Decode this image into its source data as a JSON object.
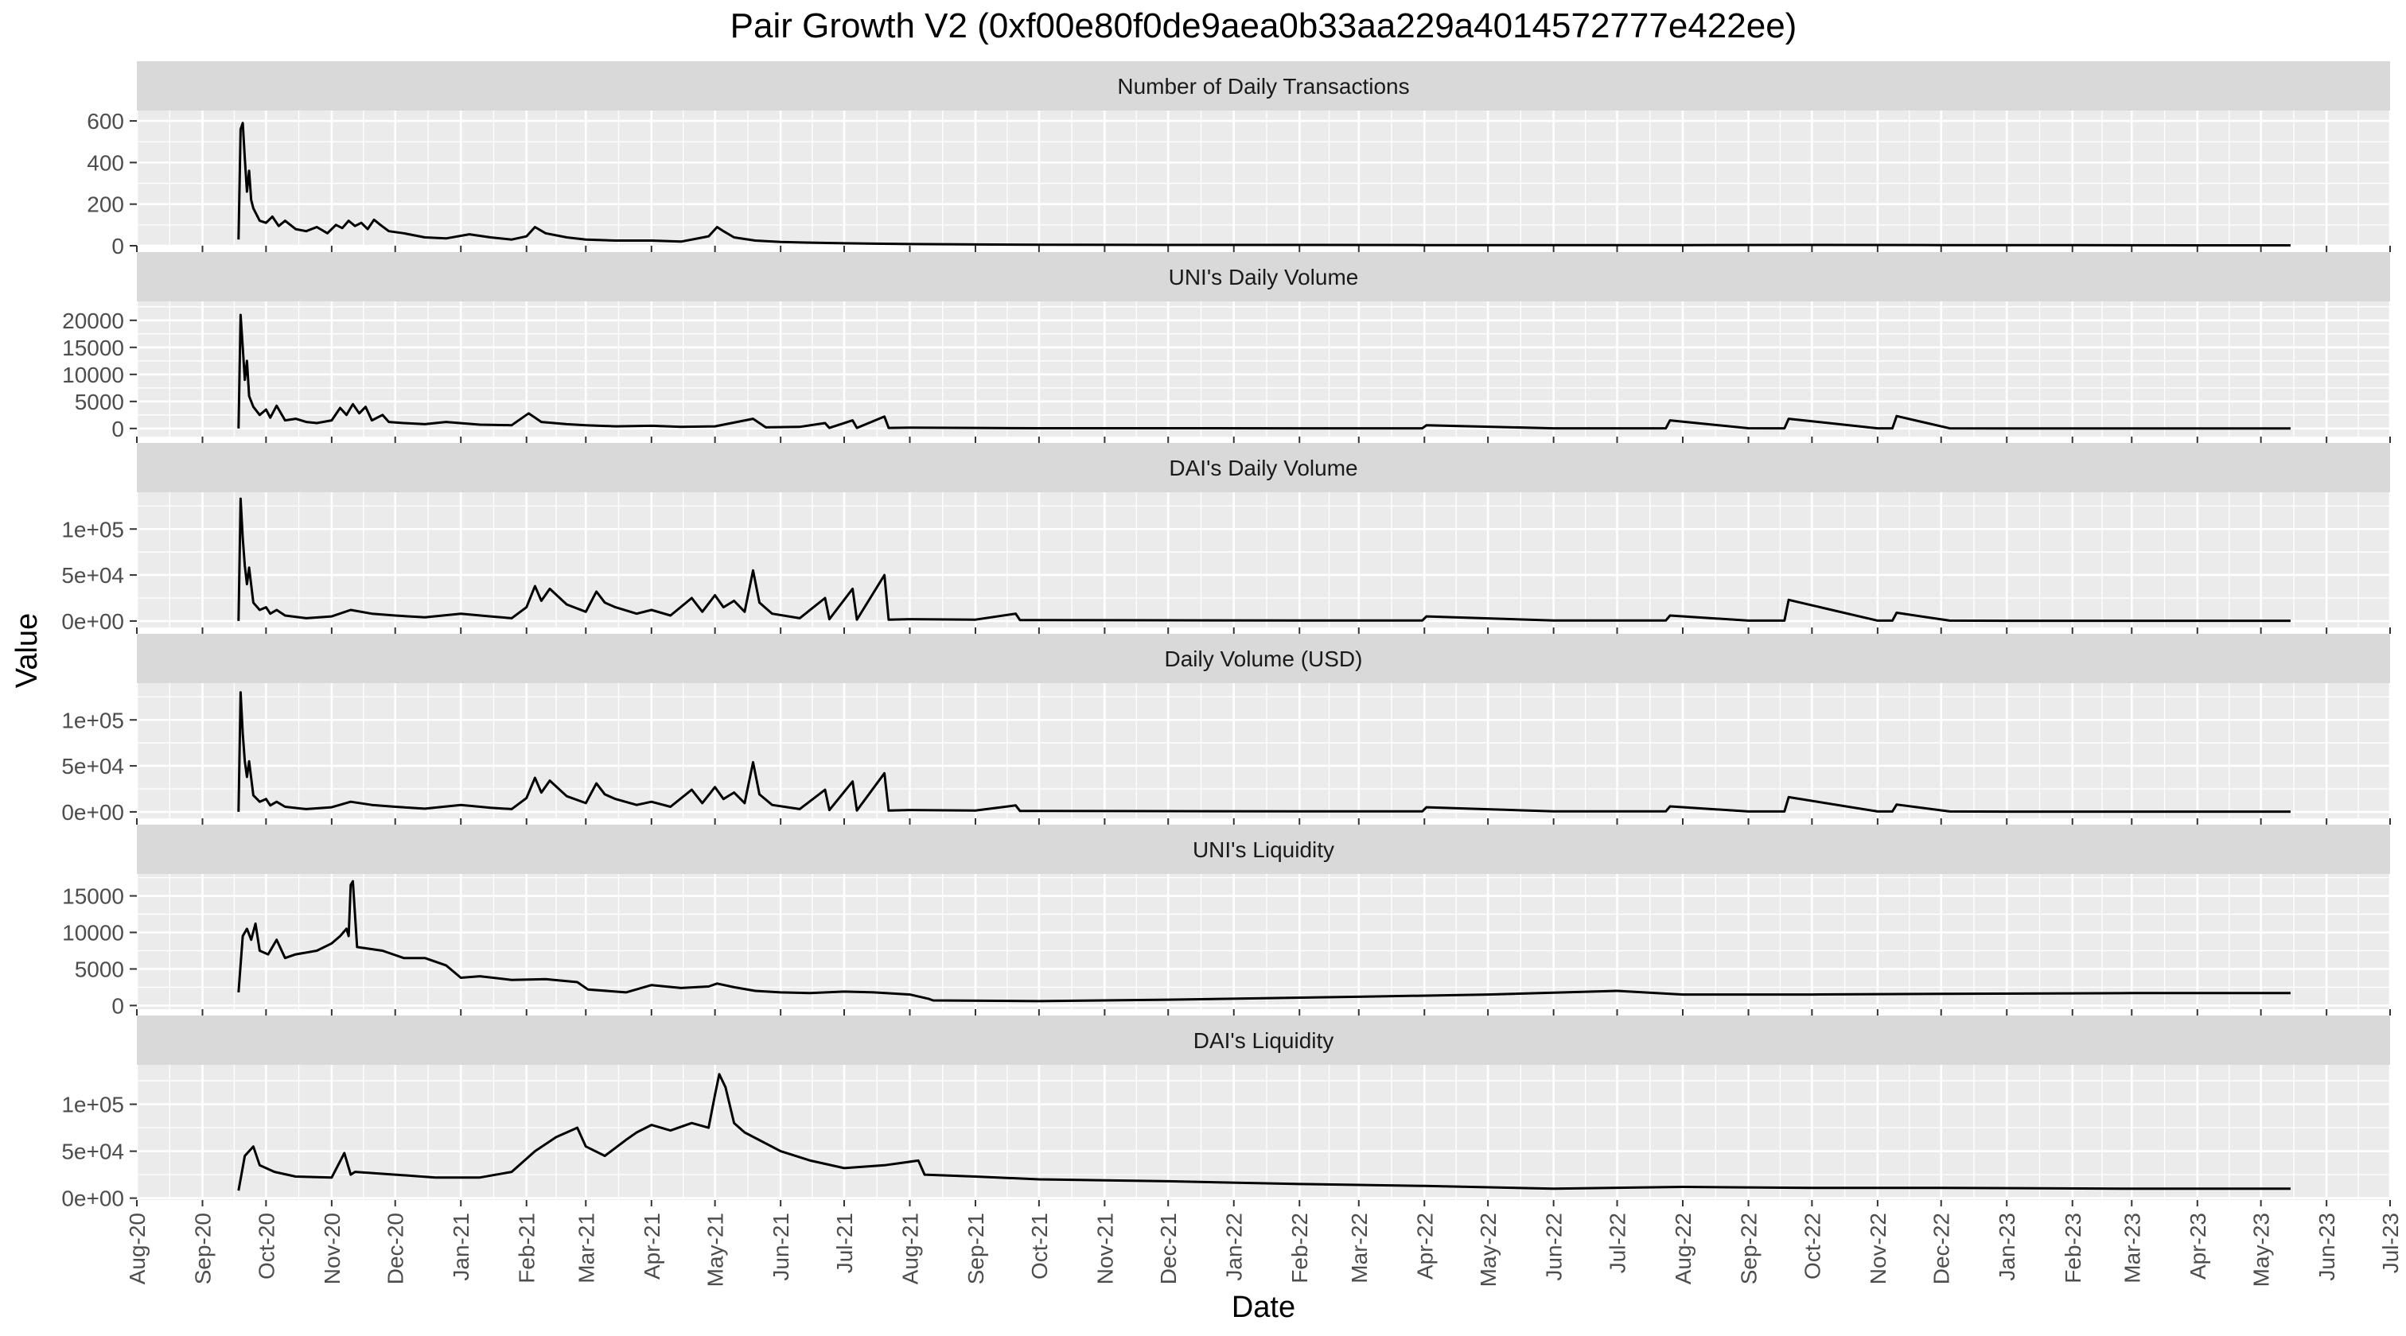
{
  "title": "Pair Growth V2 (0xf00e80f0de9aea0b33aa229a4014572777e422ee)",
  "colors": {
    "panel_background": "#ebebeb",
    "strip_background": "#d9d9d9",
    "grid_major": "#ffffff",
    "line": "#000000",
    "tick_text": "#4d4d4d"
  },
  "chart_data": {
    "type": "line",
    "facet_layout": "single column, 6 rows, shared date x-axis",
    "xlabel": "Date",
    "ylabel": "Value",
    "xlim": [
      "2020-08-01",
      "2023-07-01"
    ],
    "x_ticks": [
      "Aug-20",
      "Sep-20",
      "Oct-20",
      "Nov-20",
      "Dec-20",
      "Jan-21",
      "Feb-21",
      "Mar-21",
      "Apr-21",
      "May-21",
      "Jun-21",
      "Jul-21",
      "Aug-21",
      "Sep-21",
      "Oct-21",
      "Nov-21",
      "Dec-21",
      "Jan-22",
      "Feb-22",
      "Mar-22",
      "Apr-22",
      "May-22",
      "Jun-22",
      "Jul-22",
      "Aug-22",
      "Sep-22",
      "Oct-22",
      "Nov-22",
      "Dec-22",
      "Jan-23",
      "Feb-23",
      "Mar-23",
      "Apr-23",
      "May-23",
      "Jun-23",
      "Jul-23"
    ],
    "grid": true,
    "legend": "none",
    "panels": [
      {
        "name": "Number of Daily Transactions",
        "ylim": [
          0,
          650
        ],
        "y_ticks": [
          0,
          200,
          400,
          600
        ],
        "y_tick_labels": [
          "0",
          "200",
          "400",
          "600"
        ],
        "x": [
          "2020-09-18",
          "2020-09-19",
          "2020-09-20",
          "2020-09-21",
          "2020-09-22",
          "2020-09-23",
          "2020-09-24",
          "2020-09-25",
          "2020-09-28",
          "2020-10-01",
          "2020-10-04",
          "2020-10-07",
          "2020-10-10",
          "2020-10-15",
          "2020-10-20",
          "2020-10-25",
          "2020-10-30",
          "2020-11-03",
          "2020-11-06",
          "2020-11-09",
          "2020-11-12",
          "2020-11-15",
          "2020-11-18",
          "2020-11-21",
          "2020-11-24",
          "2020-11-28",
          "2020-12-05",
          "2020-12-15",
          "2020-12-25",
          "2021-01-05",
          "2021-01-15",
          "2021-01-25",
          "2021-02-01",
          "2021-02-05",
          "2021-02-10",
          "2021-02-20",
          "2021-03-01",
          "2021-03-15",
          "2021-04-01",
          "2021-04-15",
          "2021-04-28",
          "2021-05-02",
          "2021-05-05",
          "2021-05-10",
          "2021-05-20",
          "2021-06-01",
          "2021-06-15",
          "2021-07-01",
          "2021-07-15",
          "2021-08-01",
          "2021-09-01",
          "2021-10-01",
          "2021-12-01",
          "2022-02-01",
          "2022-04-01",
          "2022-06-01",
          "2022-08-01",
          "2022-10-01",
          "2022-12-01",
          "2023-02-01",
          "2023-04-01",
          "2023-05-15"
        ],
        "y": [
          30,
          560,
          590,
          420,
          260,
          360,
          220,
          180,
          120,
          110,
          140,
          95,
          120,
          80,
          70,
          90,
          60,
          100,
          85,
          120,
          95,
          110,
          80,
          125,
          100,
          70,
          60,
          40,
          35,
          55,
          40,
          30,
          45,
          90,
          60,
          40,
          30,
          25,
          25,
          20,
          45,
          90,
          70,
          40,
          25,
          18,
          15,
          12,
          10,
          8,
          6,
          5,
          4,
          4,
          3,
          3,
          3,
          4,
          3,
          3,
          2,
          2
        ]
      },
      {
        "name": "UNI's Daily Volume",
        "ylim": [
          -1500,
          23500
        ],
        "y_ticks": [
          0,
          5000,
          10000,
          15000,
          20000
        ],
        "y_tick_labels": [
          "0",
          "5000",
          "10000",
          "15000",
          "20000"
        ],
        "x": [
          "2020-09-18",
          "2020-09-19",
          "2020-09-20",
          "2020-09-21",
          "2020-09-22",
          "2020-09-23",
          "2020-09-25",
          "2020-09-28",
          "2020-10-01",
          "2020-10-03",
          "2020-10-06",
          "2020-10-10",
          "2020-10-15",
          "2020-10-20",
          "2020-10-25",
          "2020-11-01",
          "2020-11-05",
          "2020-11-08",
          "2020-11-11",
          "2020-11-14",
          "2020-11-17",
          "2020-11-20",
          "2020-11-25",
          "2020-11-28",
          "2020-12-05",
          "2020-12-15",
          "2020-12-25",
          "2021-01-10",
          "2021-01-25",
          "2021-02-02",
          "2021-02-08",
          "2021-02-20",
          "2021-03-01",
          "2021-03-15",
          "2021-04-01",
          "2021-04-15",
          "2021-05-01",
          "2021-05-19",
          "2021-05-25",
          "2021-06-10",
          "2021-06-22",
          "2021-06-24",
          "2021-07-05",
          "2021-07-07",
          "2021-07-20",
          "2021-07-22",
          "2021-08-01",
          "2021-09-01",
          "2021-10-01",
          "2021-12-01",
          "2022-02-01",
          "2022-03-31",
          "2022-04-02",
          "2022-06-01",
          "2022-07-24",
          "2022-07-26",
          "2022-09-01",
          "2022-09-18",
          "2022-09-20",
          "2022-11-01",
          "2022-11-08",
          "2022-11-10",
          "2022-12-05",
          "2023-01-01",
          "2023-03-01",
          "2023-05-15"
        ],
        "y": [
          0,
          21000,
          15000,
          9000,
          12500,
          6000,
          4000,
          2500,
          3500,
          2000,
          4200,
          1500,
          1800,
          1200,
          1000,
          1500,
          3800,
          2500,
          4500,
          2800,
          4000,
          1500,
          2500,
          1200,
          1000,
          800,
          1200,
          700,
          600,
          2800,
          1200,
          800,
          600,
          400,
          500,
          300,
          400,
          1800,
          200,
          300,
          1000,
          100,
          1500,
          100,
          2200,
          100,
          150,
          100,
          50,
          50,
          30,
          30,
          600,
          30,
          30,
          1500,
          50,
          30,
          1800,
          30,
          30,
          2300,
          30,
          20,
          20,
          20
        ]
      },
      {
        "name": "DAI's Daily Volume",
        "ylim": [
          -7000,
          140000
        ],
        "y_ticks": [
          0,
          50000,
          100000
        ],
        "y_tick_labels": [
          "0e+00",
          "5e+04",
          "1e+05"
        ],
        "x": [
          "2020-09-18",
          "2020-09-19",
          "2020-09-20",
          "2020-09-21",
          "2020-09-22",
          "2020-09-23",
          "2020-09-25",
          "2020-09-28",
          "2020-10-01",
          "2020-10-03",
          "2020-10-06",
          "2020-10-10",
          "2020-10-20",
          "2020-11-01",
          "2020-11-10",
          "2020-11-20",
          "2020-12-01",
          "2020-12-15",
          "2021-01-01",
          "2021-01-15",
          "2021-01-25",
          "2021-02-01",
          "2021-02-05",
          "2021-02-08",
          "2021-02-12",
          "2021-02-20",
          "2021-03-01",
          "2021-03-06",
          "2021-03-10",
          "2021-03-15",
          "2021-03-25",
          "2021-04-01",
          "2021-04-10",
          "2021-04-20",
          "2021-04-25",
          "2021-05-01",
          "2021-05-05",
          "2021-05-10",
          "2021-05-15",
          "2021-05-19",
          "2021-05-22",
          "2021-05-28",
          "2021-06-10",
          "2021-06-22",
          "2021-06-24",
          "2021-07-05",
          "2021-07-07",
          "2021-07-20",
          "2021-07-22",
          "2021-08-01",
          "2021-09-01",
          "2021-09-20",
          "2021-09-22",
          "2021-10-01",
          "2021-12-01",
          "2022-02-01",
          "2022-03-31",
          "2022-04-02",
          "2022-06-01",
          "2022-07-24",
          "2022-07-26",
          "2022-09-01",
          "2022-09-18",
          "2022-09-20",
          "2022-11-01",
          "2022-11-08",
          "2022-11-10",
          "2022-12-05",
          "2023-01-01",
          "2023-03-01",
          "2023-05-15"
        ],
        "y": [
          0,
          133000,
          90000,
          60000,
          40000,
          58000,
          20000,
          12000,
          15000,
          8000,
          12000,
          6000,
          3000,
          5000,
          12000,
          8000,
          6000,
          4000,
          8000,
          5000,
          3000,
          15000,
          38000,
          22000,
          35000,
          18000,
          10000,
          32000,
          20000,
          15000,
          8000,
          12000,
          6000,
          25000,
          10000,
          28000,
          15000,
          22000,
          10000,
          55000,
          20000,
          8000,
          3000,
          25000,
          2000,
          35000,
          1500,
          50000,
          1500,
          2000,
          1500,
          8000,
          1000,
          1000,
          800,
          600,
          500,
          5000,
          500,
          500,
          6000,
          400,
          400,
          23000,
          400,
          400,
          9000,
          400,
          300,
          300,
          300
        ]
      },
      {
        "name": "Daily Volume (USD)",
        "ylim": [
          -7000,
          140000
        ],
        "y_ticks": [
          0,
          50000,
          100000
        ],
        "y_tick_labels": [
          "0e+00",
          "5e+04",
          "1e+05"
        ],
        "x": [
          "2020-09-18",
          "2020-09-19",
          "2020-09-20",
          "2020-09-21",
          "2020-09-22",
          "2020-09-23",
          "2020-09-25",
          "2020-09-28",
          "2020-10-01",
          "2020-10-03",
          "2020-10-06",
          "2020-10-10",
          "2020-10-20",
          "2020-11-01",
          "2020-11-10",
          "2020-11-20",
          "2020-12-01",
          "2020-12-15",
          "2021-01-01",
          "2021-01-15",
          "2021-01-25",
          "2021-02-01",
          "2021-02-05",
          "2021-02-08",
          "2021-02-12",
          "2021-02-20",
          "2021-03-01",
          "2021-03-06",
          "2021-03-10",
          "2021-03-15",
          "2021-03-25",
          "2021-04-01",
          "2021-04-10",
          "2021-04-20",
          "2021-04-25",
          "2021-05-01",
          "2021-05-05",
          "2021-05-10",
          "2021-05-15",
          "2021-05-19",
          "2021-05-22",
          "2021-05-28",
          "2021-06-10",
          "2021-06-22",
          "2021-06-24",
          "2021-07-05",
          "2021-07-07",
          "2021-07-20",
          "2021-07-22",
          "2021-08-01",
          "2021-09-01",
          "2021-09-20",
          "2021-09-22",
          "2021-10-01",
          "2021-12-01",
          "2022-02-01",
          "2022-03-31",
          "2022-04-02",
          "2022-06-01",
          "2022-07-24",
          "2022-07-26",
          "2022-09-01",
          "2022-09-18",
          "2022-09-20",
          "2022-11-01",
          "2022-11-08",
          "2022-11-10",
          "2022-12-05",
          "2023-01-01",
          "2023-03-01",
          "2023-05-15"
        ],
        "y": [
          0,
          130000,
          85000,
          55000,
          38000,
          55000,
          18000,
          11000,
          14000,
          7000,
          11000,
          5500,
          3000,
          5000,
          11000,
          7500,
          5500,
          3500,
          7500,
          4500,
          3000,
          15000,
          37000,
          21000,
          34000,
          17000,
          9500,
          31000,
          19000,
          14000,
          7500,
          11000,
          5500,
          24000,
          9500,
          27000,
          14000,
          21000,
          9500,
          54000,
          19000,
          7500,
          3000,
          24000,
          2000,
          33000,
          1500,
          42000,
          1500,
          2000,
          1500,
          7000,
          1000,
          1000,
          800,
          600,
          500,
          5000,
          500,
          500,
          6000,
          400,
          400,
          16000,
          400,
          400,
          8000,
          400,
          300,
          300,
          300
        ]
      },
      {
        "name": "UNI's Liquidity",
        "ylim": [
          -500,
          18000
        ],
        "y_ticks": [
          0,
          5000,
          10000,
          15000
        ],
        "y_tick_labels": [
          "0",
          "5000",
          "10000",
          "15000"
        ],
        "x": [
          "2020-09-18",
          "2020-09-20",
          "2020-09-22",
          "2020-09-24",
          "2020-09-26",
          "2020-09-28",
          "2020-10-02",
          "2020-10-06",
          "2020-10-10",
          "2020-10-15",
          "2020-10-25",
          "2020-11-01",
          "2020-11-05",
          "2020-11-08",
          "2020-11-09",
          "2020-11-10",
          "2020-11-11",
          "2020-11-13",
          "2020-11-25",
          "2020-12-05",
          "2020-12-15",
          "2020-12-25",
          "2021-01-01",
          "2021-01-10",
          "2021-01-25",
          "2021-02-10",
          "2021-02-25",
          "2021-03-02",
          "2021-03-20",
          "2021-04-01",
          "2021-04-15",
          "2021-04-28",
          "2021-05-02",
          "2021-05-10",
          "2021-05-20",
          "2021-06-01",
          "2021-06-15",
          "2021-07-01",
          "2021-07-15",
          "2021-08-01",
          "2021-08-10",
          "2021-08-12",
          "2021-10-01",
          "2021-12-01",
          "2022-03-01",
          "2022-05-01",
          "2022-07-01",
          "2022-08-01",
          "2022-10-01",
          "2022-12-01",
          "2023-03-01",
          "2023-05-15"
        ],
        "y": [
          1800,
          9500,
          10500,
          9000,
          11200,
          7500,
          7000,
          9000,
          6500,
          7000,
          7500,
          8500,
          9500,
          10500,
          9500,
          16500,
          17000,
          8000,
          7500,
          6500,
          6500,
          5500,
          3800,
          4000,
          3500,
          3600,
          3200,
          2200,
          1800,
          2800,
          2400,
          2600,
          3000,
          2500,
          2000,
          1800,
          1700,
          1900,
          1800,
          1500,
          900,
          700,
          600,
          800,
          1200,
          1500,
          2000,
          1500,
          1500,
          1600,
          1700,
          1700
        ]
      },
      {
        "name": "DAI's Liquidity",
        "ylim": [
          -2000,
          142000
        ],
        "y_ticks": [
          0,
          50000,
          100000
        ],
        "y_tick_labels": [
          "0e+00",
          "5e+04",
          "1e+05"
        ],
        "x": [
          "2020-09-18",
          "2020-09-21",
          "2020-09-25",
          "2020-09-28",
          "2020-10-05",
          "2020-10-15",
          "2020-11-01",
          "2020-11-07",
          "2020-11-10",
          "2020-11-12",
          "2020-12-01",
          "2020-12-20",
          "2021-01-10",
          "2021-01-25",
          "2021-02-05",
          "2021-02-15",
          "2021-02-20",
          "2021-02-25",
          "2021-03-01",
          "2021-03-10",
          "2021-03-20",
          "2021-03-25",
          "2021-04-01",
          "2021-04-10",
          "2021-04-20",
          "2021-04-28",
          "2021-05-01",
          "2021-05-03",
          "2021-05-06",
          "2021-05-10",
          "2021-05-15",
          "2021-06-01",
          "2021-06-15",
          "2021-07-01",
          "2021-07-20",
          "2021-08-05",
          "2021-08-08",
          "2021-09-01",
          "2021-10-01",
          "2021-12-01",
          "2022-02-01",
          "2022-04-01",
          "2022-06-01",
          "2022-08-01",
          "2022-10-01",
          "2022-12-01",
          "2023-03-01",
          "2023-05-15"
        ],
        "y": [
          8000,
          45000,
          55000,
          35000,
          28000,
          23000,
          22000,
          48000,
          25000,
          28000,
          25000,
          22000,
          22000,
          28000,
          50000,
          65000,
          70000,
          75000,
          55000,
          45000,
          62000,
          70000,
          78000,
          72000,
          80000,
          75000,
          110000,
          132000,
          118000,
          80000,
          70000,
          50000,
          40000,
          32000,
          35000,
          40000,
          25000,
          23000,
          20000,
          18000,
          15000,
          13000,
          10000,
          12000,
          11000,
          11000,
          10000,
          10000
        ]
      }
    ]
  }
}
